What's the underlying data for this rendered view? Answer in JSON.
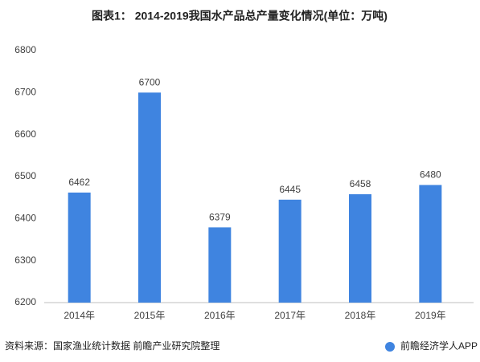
{
  "chart_data": {
    "type": "bar",
    "title": "图表1： 2014-2019我国水产品总产量变化情况(单位：万吨)",
    "categories": [
      "2014年",
      "2015年",
      "2016年",
      "2017年",
      "2018年",
      "2019年"
    ],
    "values": [
      6462,
      6700,
      6379,
      6445,
      6458,
      6480
    ],
    "color": "#3f84e0",
    "ylim": [
      6200,
      6800
    ],
    "yticks": [
      6200,
      6300,
      6400,
      6500,
      6600,
      6700,
      6800
    ],
    "grid": false,
    "source": "资料来源：国家渔业统计数据 前瞻产业研究院整理",
    "credit": "前瞻经济学人APP"
  }
}
